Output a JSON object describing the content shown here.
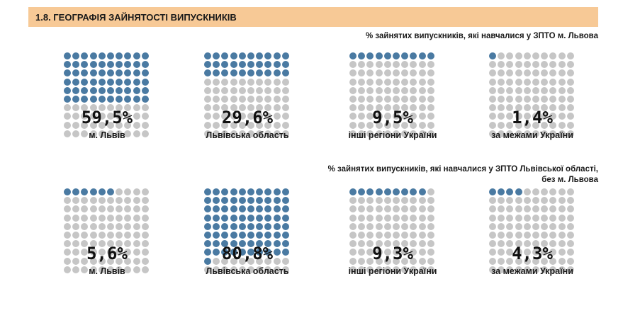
{
  "header": {
    "title": "1.8. ГЕОГРАФІЯ ЗАЙНЯТОСТІ ВИПУСКНИКІВ"
  },
  "section1": {
    "caption": "% зайнятих випускників, які навчалися у ЗПТО м. Львова",
    "items": [
      {
        "percent": "59,5%",
        "label": "м. Львів",
        "value": 59.5
      },
      {
        "percent": "29,6%",
        "label": "Львівська область",
        "value": 29.6
      },
      {
        "percent": "9,5%",
        "label": "інші регіони України",
        "value": 9.5
      },
      {
        "percent": "1,4%",
        "label": "за межами України",
        "value": 1.4
      }
    ]
  },
  "section2": {
    "caption_line1": "% зайнятих випускників, які навчалися у ЗПТО Львівської області,",
    "caption_line2": "без м. Львова",
    "items": [
      {
        "percent": "5,6%",
        "label": "м. Львів",
        "value": 5.6
      },
      {
        "percent": "80,8%",
        "label": "Львівська область",
        "value": 80.8
      },
      {
        "percent": "9,3%",
        "label": "інші регіони України",
        "value": 9.3
      },
      {
        "percent": "4,3%",
        "label": "за межами України",
        "value": 4.3
      }
    ]
  },
  "colors": {
    "filled": "#4a7aa2",
    "empty": "#c6c6c6",
    "header": "#f7c996"
  }
}
